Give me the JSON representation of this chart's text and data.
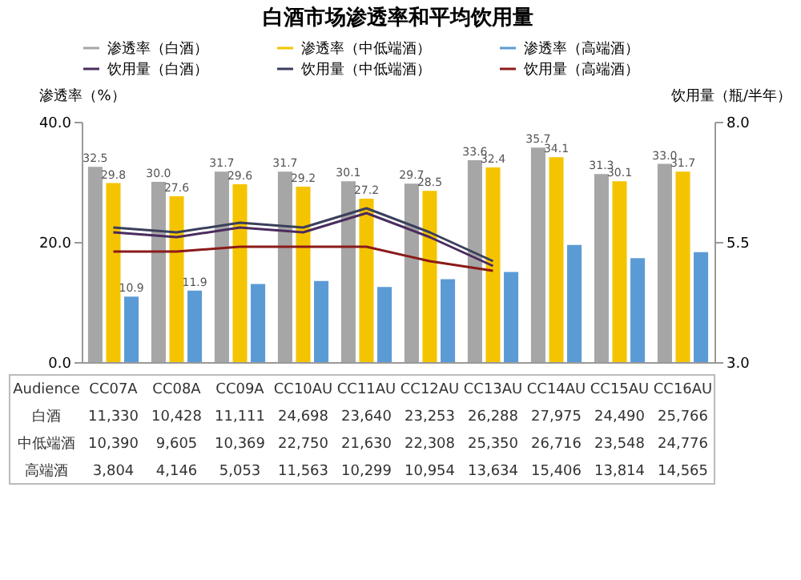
{
  "chart_data": {
    "type": "bar",
    "title": "白酒市场渗透率和平均饮用量",
    "categories": [
      "CC07A",
      "CC08A",
      "CC09A",
      "CC10AU",
      "CC11AU",
      "CC12AU",
      "CC13AU",
      "CC14AU",
      "CC15AU",
      "CC16AU"
    ],
    "series": [
      {
        "name": "渗透率（白酒）",
        "color": "#a6a6a6",
        "values": [
          32.5,
          30.0,
          31.7,
          31.7,
          30.1,
          29.7,
          33.6,
          35.7,
          31.3,
          33.0
        ],
        "value_labels": [
          "32.5",
          "30.0",
          "31.7",
          "31.7",
          "30.1",
          "29.7",
          "33.6",
          "35.7",
          "31.3",
          "33.0"
        ]
      },
      {
        "name": "渗透率（中低端酒）",
        "color": "#f5c400",
        "values": [
          29.8,
          27.6,
          29.6,
          29.2,
          27.2,
          28.5,
          32.4,
          34.1,
          30.1,
          31.7
        ],
        "value_labels": [
          "29.8",
          "27.6",
          "29.6",
          "29.2",
          "27.2",
          "28.5",
          "32.4",
          "34.1",
          "30.1",
          "31.7"
        ]
      },
      {
        "name": "渗透率（高端酒）",
        "color": "#5b9bd5",
        "values": [
          10.9,
          11.9,
          13.0,
          13.5,
          12.5,
          13.8,
          15.0,
          19.5,
          17.3,
          18.3
        ],
        "value_labels": [
          "10.9",
          "11.9",
          null,
          null,
          null,
          null,
          null,
          null,
          null,
          null
        ]
      },
      {
        "name": "饮用量（白酒）",
        "type": "line",
        "axis": "y2",
        "color": "#4b2b5e",
        "values": [
          5.7,
          5.6,
          5.8,
          5.7,
          6.1,
          5.6,
          5.0,
          null,
          null,
          null
        ]
      },
      {
        "name": "饮用量（中低端酒）",
        "type": "line",
        "axis": "y2",
        "color": "#3a3f5c",
        "values": [
          5.8,
          5.7,
          5.9,
          5.8,
          6.2,
          5.7,
          5.1,
          null,
          null,
          null
        ]
      },
      {
        "name": "饮用量（高端酒）",
        "type": "line",
        "axis": "y2",
        "color": "#8b1a1a",
        "values": [
          5.3,
          5.3,
          5.4,
          5.4,
          5.4,
          5.1,
          4.9,
          null,
          null,
          null
        ]
      }
    ],
    "ylabel": "渗透率（%）",
    "y2label": "饮用量（瓶/半年）",
    "ylim": [
      0,
      40
    ],
    "yticks": [
      {
        "value": 0,
        "label": "0.0"
      },
      {
        "value": 20,
        "label": "20.0"
      },
      {
        "value": 40,
        "label": "40.0"
      }
    ],
    "y2lim": [
      3,
      8
    ],
    "y2ticks": [
      {
        "value": 3,
        "label": "3.0"
      },
      {
        "value": 5.5,
        "label": "5.5"
      },
      {
        "value": 8,
        "label": "8.0"
      }
    ],
    "legend": "top",
    "grid": false,
    "annotations": [
      "Audience",
      "白酒",
      "11,330",
      "10,428",
      "11,111",
      "24,698",
      "23,640",
      "23,253",
      "26,288",
      "27,975",
      "24,490",
      "25,766",
      "中低端酒",
      "10,390",
      "9,605",
      "10,369",
      "22,750",
      "21,630",
      "22,308",
      "25,350",
      "26,716",
      "23,548",
      "24,776",
      "高端酒",
      "3,804",
      "4,146",
      "5,053",
      "11,563",
      "10,299",
      "10,954",
      "13,634",
      "15,406",
      "13,814",
      "14,565"
    ]
  }
}
